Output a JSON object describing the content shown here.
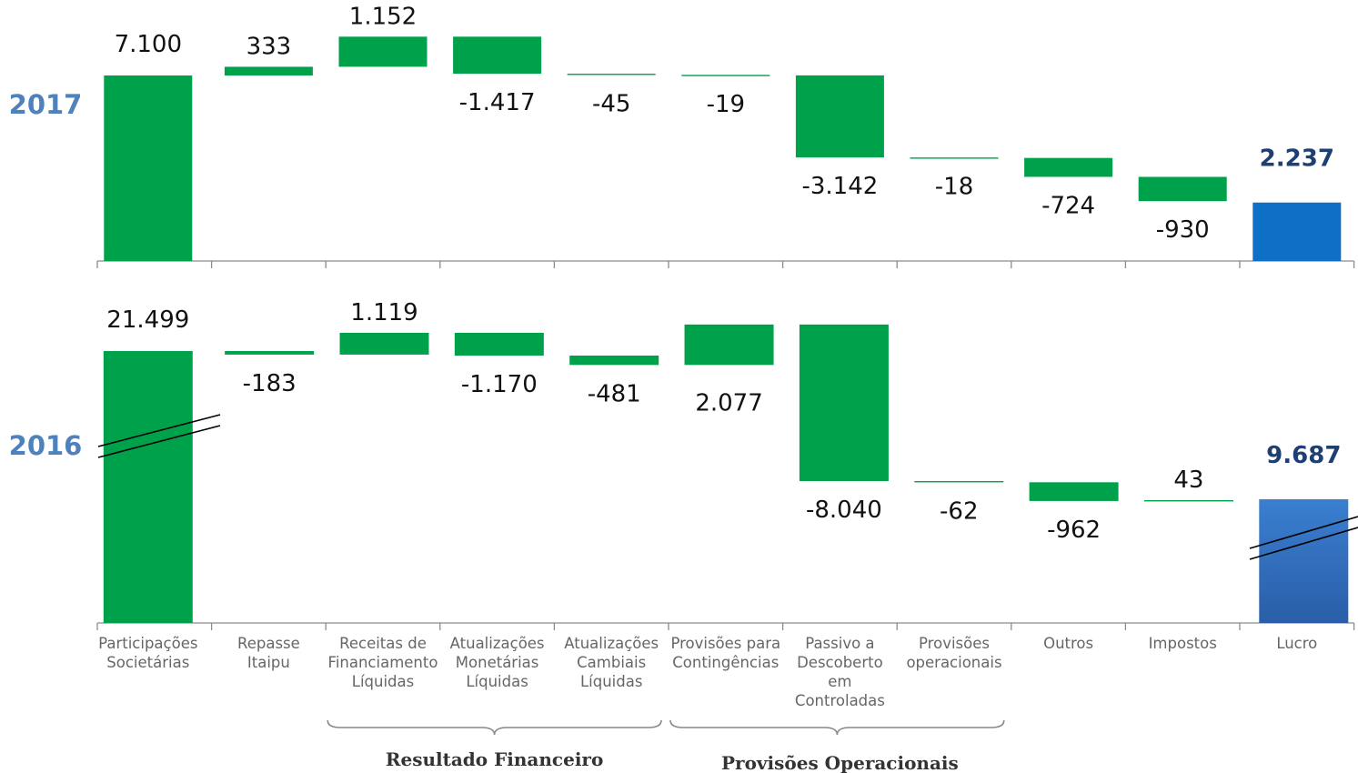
{
  "chart_data": {
    "type": "bar",
    "subtype": "waterfall",
    "categories": [
      [
        "Participações",
        "Societárias"
      ],
      [
        "Repasse",
        "Itaipu"
      ],
      [
        "Receitas de",
        "Financiamento",
        "Líquidas"
      ],
      [
        "Atualizações",
        "Monetárias",
        "Líquidas"
      ],
      [
        "Atualizações",
        "Cambiais",
        "Líquidas"
      ],
      [
        "Provisões para",
        "Contingências"
      ],
      [
        "Passivo a",
        "Descoberto",
        "em",
        "Controladas"
      ],
      [
        "Provisões",
        "operacionais"
      ],
      [
        "Outros"
      ],
      [
        "Impostos"
      ],
      [
        "Lucro"
      ]
    ],
    "panels": [
      {
        "year": "2017",
        "values": [
          7100,
          333,
          1152,
          -1417,
          -45,
          -19,
          -3142,
          -18,
          -724,
          -930,
          2237
        ],
        "labels": [
          "7.100",
          "333",
          "1.152",
          "-1.417",
          "-45",
          "-19",
          "-3.142",
          "-18",
          "-724",
          "-930",
          "2.237"
        ],
        "axis_break": false
      },
      {
        "year": "2016",
        "values": [
          21499,
          -183,
          1119,
          -1170,
          -481,
          2077,
          -8040,
          -62,
          -962,
          43,
          9687
        ],
        "labels": [
          "21.499",
          "-183",
          "1.119",
          "-1.170",
          "-481",
          "2.077",
          "-8.040",
          "-62",
          "-962",
          "43",
          "9.687"
        ],
        "axis_break": true
      }
    ],
    "groups": [
      {
        "label": "Resultado Financeiro",
        "categories": [
          2,
          3,
          4
        ]
      },
      {
        "label": "Provisões Operacionais",
        "categories": [
          5,
          6,
          7
        ]
      }
    ],
    "colors": {
      "delta": "#00a14b",
      "total_2017": "#0f6fc6",
      "total_2016_top": "#3a7fd0",
      "total_2016_bottom": "#2a5ea8",
      "year_label": "#4f81bd",
      "total_label": "#1f3f73"
    },
    "grid": false,
    "legend": "none"
  }
}
